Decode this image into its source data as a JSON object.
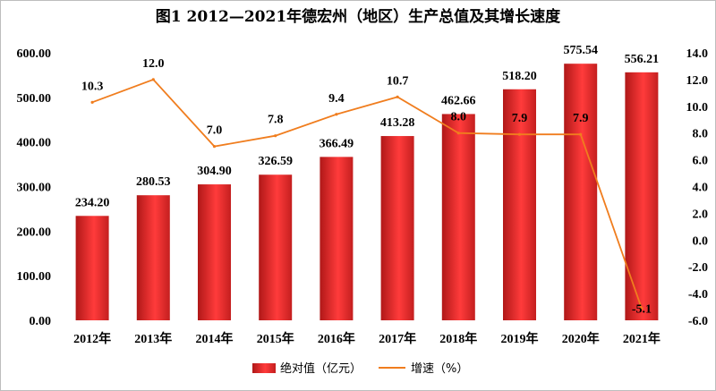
{
  "chart_data": {
    "type": "bar",
    "title": "图1  2012—2021年德宏州（地区）生产总值及其增长速度",
    "categories": [
      "2012年",
      "2013年",
      "2014年",
      "2015年",
      "2016年",
      "2017年",
      "2018年",
      "2019年",
      "2020年",
      "2021年"
    ],
    "series": [
      {
        "name": "绝对值（亿元）",
        "type": "bar",
        "axis": "left",
        "color": "#e03030",
        "values": [
          234.2,
          280.53,
          304.9,
          326.59,
          366.49,
          413.28,
          462.66,
          518.2,
          575.54,
          556.21
        ],
        "labels": [
          "234.20",
          "280.53",
          "304.90",
          "326.59",
          "366.49",
          "413.28",
          "462.66",
          "518.20",
          "575.54",
          "556.21"
        ]
      },
      {
        "name": "增速（%）",
        "type": "line",
        "axis": "right",
        "color": "#f07d1e",
        "values": [
          10.3,
          12.0,
          7.0,
          7.8,
          9.4,
          10.7,
          8.0,
          7.9,
          7.9,
          -5.1
        ],
        "labels": [
          "10.3",
          "12.0",
          "7.0",
          "7.8",
          "9.4",
          "10.7",
          "8.0",
          "7.9",
          "7.9",
          "-5.1"
        ]
      }
    ],
    "y_left": {
      "ylim": [
        0,
        600
      ],
      "ticks": [
        "0.00",
        "100.00",
        "200.00",
        "300.00",
        "400.00",
        "500.00",
        "600.00"
      ]
    },
    "y_right": {
      "ylim": [
        -6,
        14
      ],
      "ticks": [
        "-6.0",
        "-4.0",
        "-2.0",
        "0.0",
        "2.0",
        "4.0",
        "6.0",
        "8.0",
        "10.0",
        "12.0",
        "14.0"
      ]
    },
    "grid": false,
    "legend": "bottom"
  }
}
